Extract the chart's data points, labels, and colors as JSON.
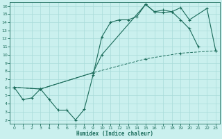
{
  "xlabel": "Humidex (Indice chaleur)",
  "bg_color": "#caf0ee",
  "grid_color": "#a8dbd9",
  "line_color": "#1a6b5a",
  "xlim": [
    -0.5,
    23.5
  ],
  "ylim": [
    1.5,
    16.5
  ],
  "xticks": [
    0,
    1,
    2,
    3,
    4,
    5,
    6,
    7,
    8,
    9,
    10,
    11,
    12,
    13,
    14,
    15,
    16,
    17,
    18,
    19,
    20,
    21,
    22,
    23
  ],
  "yticks": [
    2,
    3,
    4,
    5,
    6,
    7,
    8,
    9,
    10,
    11,
    12,
    13,
    14,
    15,
    16
  ],
  "zz_x": [
    0,
    1,
    2,
    3,
    4,
    5,
    6,
    7,
    8,
    9,
    10,
    11,
    12,
    13,
    14,
    15,
    16,
    17,
    18,
    19,
    20,
    21
  ],
  "zz_y": [
    6.0,
    4.5,
    4.7,
    5.8,
    4.5,
    3.2,
    3.2,
    2.0,
    3.3,
    7.5,
    12.2,
    14.0,
    14.3,
    14.3,
    14.7,
    16.2,
    15.3,
    15.2,
    15.3,
    14.3,
    13.2,
    11.0
  ],
  "uc_x": [
    0,
    3,
    9,
    10,
    15,
    16,
    17,
    18,
    19,
    20,
    22,
    23
  ],
  "uc_y": [
    6.0,
    5.8,
    7.8,
    10.0,
    16.2,
    15.3,
    15.5,
    15.3,
    15.8,
    14.3,
    15.7,
    10.5
  ],
  "ll_x": [
    0,
    3,
    9,
    15,
    19,
    23
  ],
  "ll_y": [
    6.0,
    5.8,
    7.8,
    9.5,
    10.2,
    10.5
  ]
}
